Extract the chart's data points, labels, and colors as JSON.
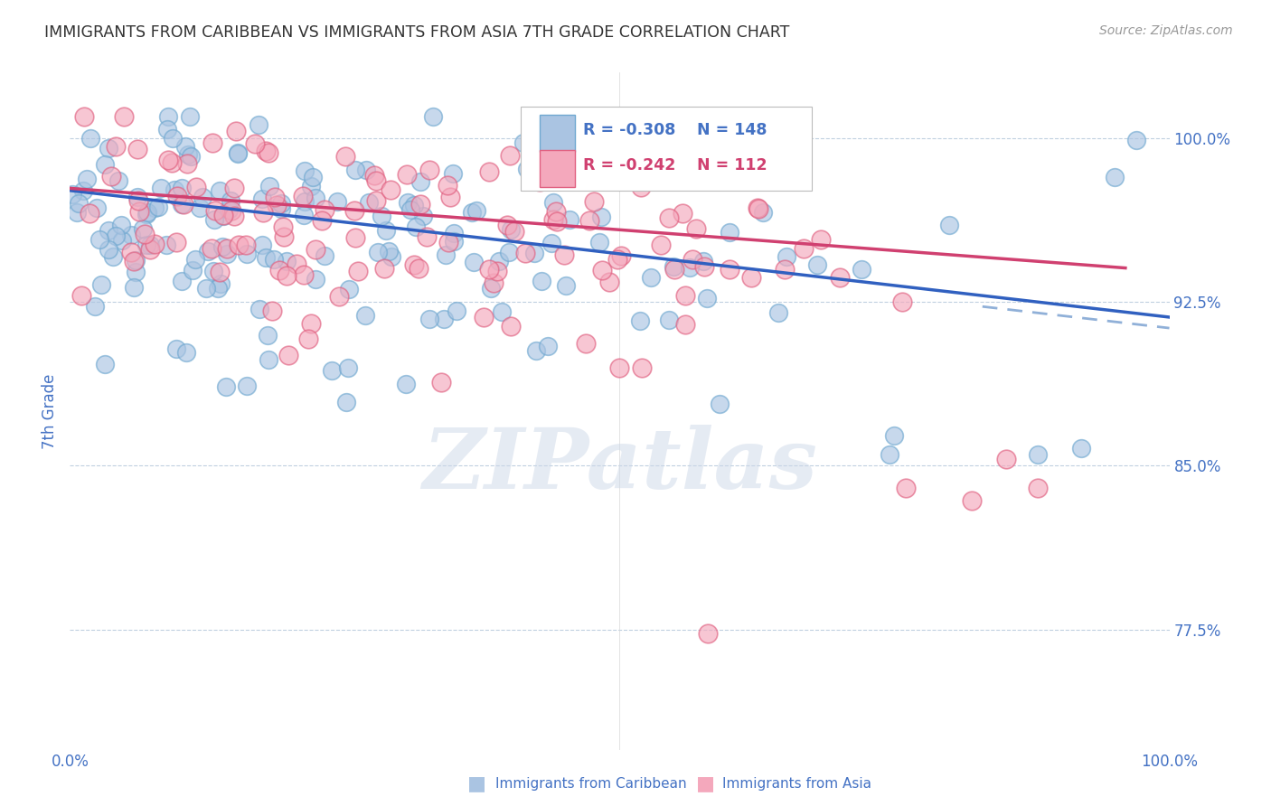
{
  "title": "IMMIGRANTS FROM CARIBBEAN VS IMMIGRANTS FROM ASIA 7TH GRADE CORRELATION CHART",
  "source": "Source: ZipAtlas.com",
  "ylabel": "7th Grade",
  "xlim": [
    0.0,
    1.0
  ],
  "ylim": [
    0.72,
    1.03
  ],
  "yticks": [
    0.775,
    0.85,
    0.925,
    1.0
  ],
  "ytick_labels": [
    "77.5%",
    "85.0%",
    "92.5%",
    "100.0%"
  ],
  "xticks": [
    0.0,
    0.2,
    0.4,
    0.6,
    0.8,
    1.0
  ],
  "xtick_labels": [
    "0.0%",
    "",
    "",
    "",
    "",
    "100.0%"
  ],
  "caribbean_color": "#aac4e2",
  "caribbean_edge": "#6fa8d0",
  "asia_color": "#f4a8bc",
  "asia_edge": "#e06080",
  "blue_line_color": "#3060c0",
  "pink_line_color": "#d04070",
  "dashed_color": "#90b0d8",
  "watermark": "ZIPatlas",
  "caribbean_r": -0.308,
  "caribbean_n": 148,
  "asia_r": -0.242,
  "asia_n": 112,
  "blue_intercept": 0.976,
  "blue_slope": -0.058,
  "pink_intercept": 0.977,
  "pink_slope": -0.038,
  "background_color": "#ffffff",
  "grid_color": "#c0d0e0",
  "title_color": "#333333",
  "axis_label_color": "#4472c4",
  "tick_label_color": "#4472c4",
  "legend_text_color_blue": "#4472c4",
  "legend_text_color_pink": "#d04070",
  "seed": 12345
}
